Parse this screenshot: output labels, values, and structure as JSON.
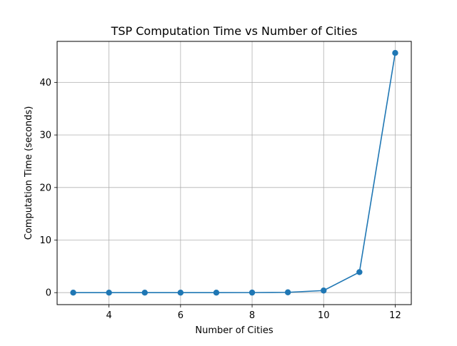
{
  "chart_data": {
    "type": "line",
    "title": "TSP Computation Time vs Number of Cities",
    "xlabel": "Number of Cities",
    "ylabel": "Computation Time (seconds)",
    "xlim": [
      2.55,
      12.45
    ],
    "ylim": [
      -2.28,
      47.8
    ],
    "xticks": [
      4,
      6,
      8,
      10,
      12
    ],
    "yticks": [
      0,
      10,
      20,
      30,
      40
    ],
    "grid": true,
    "marker": "circle",
    "series": [
      {
        "color": "#1f77b4",
        "x": [
          3,
          4,
          5,
          6,
          7,
          8,
          9,
          10,
          11,
          12
        ],
        "y": [
          0.0,
          0.0,
          0.0,
          0.0,
          0.0,
          0.01,
          0.06,
          0.4,
          3.9,
          45.6
        ]
      }
    ]
  }
}
